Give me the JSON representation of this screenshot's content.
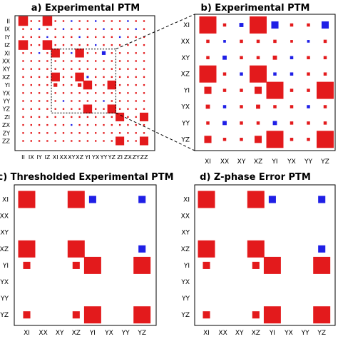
{
  "colors": {
    "positive": "#e31a1c",
    "negative": "#1f1fe6",
    "frame": "#000000",
    "zoom_box": "#000000"
  },
  "chart_data": [
    {
      "panel": "a",
      "type": "heatmap",
      "title": "a) Experimental PTM",
      "labels": [
        "II",
        "IX",
        "IY",
        "IZ",
        "XI",
        "XX",
        "XY",
        "XZ",
        "YI",
        "YX",
        "YY",
        "YZ",
        "ZI",
        "ZX",
        "ZY",
        "ZZ"
      ],
      "tick_text": [
        "II",
        "IX",
        "IY",
        "IZ",
        "XI",
        "XX",
        "XY",
        "XZ",
        "YI",
        "YX",
        "YY",
        "YZ",
        "ZI",
        "ZX",
        "ZY",
        "ZZ"
      ],
      "encoding": "square area proportional to |value|; red positive, blue negative",
      "zoom_region": {
        "rows": [
          "XI",
          "XX",
          "XY",
          "XZ",
          "YI",
          "YX",
          "YY",
          "YZ"
        ],
        "cols": [
          "XI",
          "XX",
          "XY",
          "XZ",
          "YI",
          "YX",
          "YY",
          "YZ"
        ]
      },
      "matrix": [
        [
          1.0,
          0.03,
          0.03,
          1.0,
          0.03,
          0.03,
          -0.03,
          0.03,
          0.03,
          -0.03,
          0.03,
          0.03,
          0.03,
          -0.03,
          0.03,
          0.03
        ],
        [
          0.03,
          0.03,
          -0.03,
          0.03,
          0.03,
          -0.03,
          0.03,
          0.03,
          0.03,
          0.03,
          -0.03,
          0.03,
          0.03,
          0.03,
          -0.03,
          0.03
        ],
        [
          0.03,
          0.03,
          0.03,
          -0.03,
          0.03,
          0.03,
          0.03,
          -0.03,
          0.03,
          0.03,
          0.03,
          0.03,
          -0.03,
          0.03,
          0.03,
          0.03
        ],
        [
          1.0,
          0.03,
          0.03,
          1.0,
          0.03,
          0.03,
          0.03,
          0.03,
          0.03,
          -0.03,
          0.03,
          0.03,
          0.03,
          0.03,
          0.03,
          0.03
        ],
        [
          0.03,
          0.03,
          -0.03,
          0.03,
          0.85,
          0.03,
          -0.03,
          0.85,
          0.03,
          0.03,
          -0.15,
          0.03,
          0.03,
          0.03,
          0.03,
          0.03
        ],
        [
          0.03,
          0.03,
          0.03,
          0.03,
          0.03,
          0.03,
          0.03,
          0.03,
          0.03,
          0.03,
          0.03,
          0.03,
          0.03,
          0.03,
          0.03,
          0.03
        ],
        [
          0.03,
          0.03,
          0.03,
          0.03,
          0.03,
          0.03,
          0.03,
          0.03,
          0.03,
          0.03,
          0.03,
          0.03,
          0.03,
          0.03,
          0.03,
          0.03
        ],
        [
          0.03,
          0.03,
          0.03,
          0.03,
          0.85,
          0.03,
          0.03,
          0.85,
          -0.05,
          0.03,
          0.03,
          0.03,
          0.03,
          0.03,
          0.03,
          0.03
        ],
        [
          0.03,
          0.03,
          0.03,
          0.03,
          0.15,
          0.03,
          0.03,
          0.15,
          0.85,
          0.03,
          0.03,
          0.85,
          0.03,
          0.03,
          0.03,
          0.03
        ],
        [
          0.03,
          0.03,
          0.03,
          0.03,
          0.03,
          0.03,
          0.03,
          0.03,
          0.03,
          0.03,
          0.03,
          0.03,
          0.03,
          0.03,
          0.03,
          0.03
        ],
        [
          0.03,
          0.03,
          0.03,
          0.03,
          0.03,
          -0.03,
          0.03,
          0.03,
          0.03,
          0.03,
          -0.03,
          0.03,
          0.03,
          0.03,
          0.03,
          0.03
        ],
        [
          0.03,
          0.03,
          0.03,
          0.03,
          0.03,
          0.03,
          0.03,
          0.03,
          0.85,
          0.03,
          0.03,
          0.85,
          0.03,
          0.03,
          0.03,
          0.03
        ],
        [
          0.03,
          0.03,
          0.03,
          0.03,
          0.03,
          0.03,
          0.03,
          0.03,
          0.03,
          0.03,
          0.03,
          0.03,
          0.8,
          0.03,
          0.03,
          0.8
        ],
        [
          0.03,
          0.03,
          0.03,
          0.03,
          0.03,
          0.03,
          -0.03,
          0.03,
          0.03,
          0.03,
          0.03,
          0.03,
          0.03,
          0.03,
          0.03,
          0.03
        ],
        [
          0.03,
          0.03,
          0.03,
          0.03,
          0.03,
          0.03,
          0.03,
          0.03,
          0.03,
          0.03,
          0.03,
          0.03,
          0.03,
          0.03,
          0.03,
          0.03
        ],
        [
          0.03,
          0.03,
          0.03,
          0.03,
          0.03,
          0.03,
          0.03,
          0.03,
          0.03,
          0.03,
          0.03,
          0.03,
          0.8,
          0.03,
          0.03,
          0.8
        ]
      ]
    },
    {
      "panel": "b",
      "type": "heatmap",
      "title": "b) Experimental PTM",
      "labels": [
        "XI",
        "XX",
        "XY",
        "XZ",
        "YI",
        "YX",
        "YY",
        "YZ"
      ],
      "encoding": "square area proportional to |value|; red positive, blue negative",
      "matrix": [
        [
          0.85,
          0.03,
          -0.05,
          0.85,
          -0.15,
          0.03,
          0.03,
          -0.15
        ],
        [
          0.03,
          -0.02,
          0.03,
          0.03,
          0.03,
          0.02,
          -0.02,
          0.03
        ],
        [
          0.03,
          -0.05,
          0.03,
          0.03,
          0.05,
          -0.03,
          0.03,
          0.03
        ],
        [
          0.85,
          0.03,
          -0.03,
          0.85,
          -0.03,
          -0.03,
          0.03,
          0.03
        ],
        [
          0.15,
          0.03,
          0.03,
          0.15,
          0.85,
          0.03,
          0.03,
          0.85
        ],
        [
          0.05,
          -0.03,
          0.03,
          0.05,
          0.03,
          0.03,
          -0.03,
          0.03
        ],
        [
          0.03,
          -0.05,
          0.03,
          0.03,
          -0.05,
          0.03,
          0.03,
          0.03
        ],
        [
          0.15,
          0.03,
          0.03,
          0.15,
          0.85,
          0.03,
          0.03,
          0.85
        ]
      ]
    },
    {
      "panel": "c",
      "type": "heatmap",
      "title": "c) Thresholded Experimental PTM",
      "labels": [
        "XI",
        "XX",
        "XY",
        "XZ",
        "YI",
        "YX",
        "YY",
        "YZ"
      ],
      "encoding": "square area proportional to |value|; red positive, blue negative",
      "matrix": [
        [
          0.85,
          0,
          0,
          0.85,
          -0.15,
          0,
          0,
          -0.15
        ],
        [
          0,
          0,
          0,
          0,
          0,
          0,
          0,
          0
        ],
        [
          0,
          0,
          0,
          0,
          0,
          0,
          0,
          0
        ],
        [
          0.85,
          0,
          0,
          0.85,
          0,
          0,
          0,
          -0.15
        ],
        [
          0.15,
          0,
          0,
          0.15,
          0.85,
          0,
          0,
          0.85
        ],
        [
          0,
          0,
          0,
          0,
          0,
          0,
          0,
          0
        ],
        [
          0,
          0,
          0,
          0,
          0,
          0,
          0,
          0
        ],
        [
          0.15,
          0,
          0,
          0.15,
          0.85,
          0,
          0,
          0.85
        ]
      ]
    },
    {
      "panel": "d",
      "type": "heatmap",
      "title": "d) Z-phase Error PTM",
      "labels": [
        "XI",
        "XX",
        "XY",
        "XZ",
        "YI",
        "YX",
        "YY",
        "YZ"
      ],
      "encoding": "square area proportional to |value|; red positive, blue negative",
      "matrix": [
        [
          0.85,
          0,
          0,
          0.85,
          -0.15,
          0,
          0,
          -0.15
        ],
        [
          0,
          0,
          0,
          0,
          0,
          0,
          0,
          0
        ],
        [
          0,
          0,
          0,
          0,
          0,
          0,
          0,
          0
        ],
        [
          0.85,
          0,
          0,
          0.85,
          0,
          0,
          0,
          -0.15
        ],
        [
          0.15,
          0,
          0,
          0.15,
          0.85,
          0,
          0,
          0.85
        ],
        [
          0,
          0,
          0,
          0,
          0,
          0,
          0,
          0
        ],
        [
          0,
          0,
          0,
          0,
          0,
          0,
          0,
          0
        ],
        [
          0.15,
          0,
          0,
          0.15,
          0.85,
          0,
          0,
          0.85
        ]
      ]
    }
  ]
}
